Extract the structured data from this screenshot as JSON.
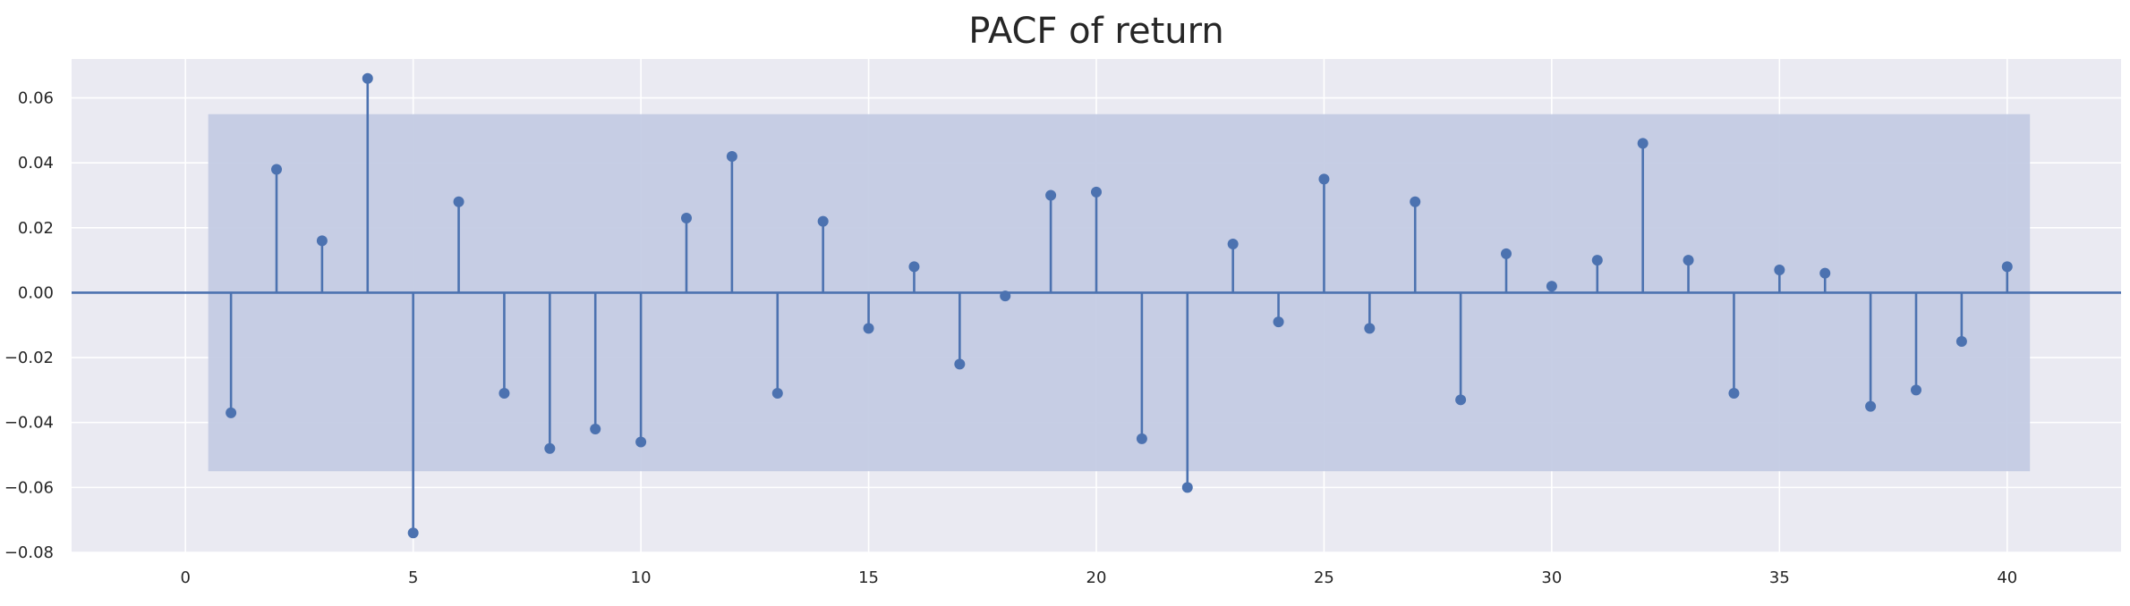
{
  "chart_data": {
    "type": "scatter",
    "subtype": "stem",
    "title": "PACF of return",
    "xlabel": "",
    "ylabel": "",
    "xlim": [
      -2.5,
      42.5
    ],
    "ylim": [
      -0.08,
      0.072
    ],
    "xticks": [
      0,
      5,
      10,
      15,
      20,
      25,
      30,
      35,
      40
    ],
    "yticks": [
      -0.08,
      -0.06,
      -0.04,
      -0.02,
      0.0,
      0.02,
      0.04,
      0.06
    ],
    "ytick_labels": [
      "−0.08",
      "−0.06",
      "−0.04",
      "−0.02",
      "0.00",
      "0.02",
      "0.04",
      "0.06"
    ],
    "grid": true,
    "confidence_band": {
      "x_range": [
        0.5,
        40.5
      ],
      "y_range": [
        -0.055,
        0.055
      ]
    },
    "series": [
      {
        "x": [
          1,
          2,
          3,
          4,
          5,
          6,
          7,
          8,
          9,
          10,
          11,
          12,
          13,
          14,
          15,
          16,
          17,
          18,
          19,
          20,
          21,
          22,
          23,
          24,
          25,
          26,
          27,
          28,
          29,
          30,
          31,
          32,
          33,
          34,
          35,
          36,
          37,
          38,
          39,
          40
        ],
        "values": [
          -0.037,
          0.038,
          0.016,
          0.066,
          -0.074,
          0.028,
          -0.031,
          -0.048,
          -0.042,
          -0.046,
          0.023,
          0.042,
          -0.031,
          0.022,
          -0.011,
          0.008,
          -0.022,
          -0.001,
          0.03,
          0.031,
          -0.045,
          -0.06,
          0.015,
          -0.009,
          0.035,
          -0.011,
          0.028,
          -0.033,
          0.012,
          0.002,
          0.01,
          0.046,
          0.01,
          -0.031,
          0.007,
          0.006,
          -0.035,
          -0.03,
          -0.015,
          0.008
        ]
      }
    ],
    "colors": {
      "background": "#eaeaf2",
      "grid": "#ffffff",
      "series": "#4c72b0",
      "band": "#c2cae3",
      "text": "#262626"
    }
  }
}
